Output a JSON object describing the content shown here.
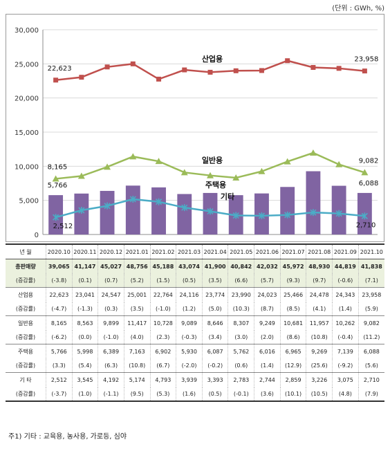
{
  "unit_note": "(단위 : GWh, %)",
  "footnote": "주1) 기타 : 교육용, 농사용, 가로등, 심야",
  "chart_data": {
    "type": "bar+line",
    "categories": [
      "2020.10",
      "2020.11",
      "2020.12",
      "2021.01",
      "2021.02",
      "2021.03",
      "2021.04",
      "2021.05",
      "2021.06",
      "2021.07",
      "2021.08",
      "2021.09",
      "2021.10"
    ],
    "ylim": [
      0,
      30000
    ],
    "yticks": [
      "0",
      "5,000",
      "10,000",
      "15,000",
      "20,000",
      "25,000",
      "30,000"
    ],
    "grid": true,
    "colors": {
      "industrial": "#c0504d",
      "general": "#9bbb59",
      "residential": "#8064a2",
      "other": "#4bacc6"
    },
    "series": [
      {
        "key": "industrial",
        "name": "산업용",
        "type": "line",
        "values": [
          22623,
          23041,
          24547,
          25001,
          22764,
          24116,
          23774,
          23990,
          24023,
          25466,
          24478,
          24343,
          23958
        ],
        "start_label": "22,623",
        "end_label": "23,958"
      },
      {
        "key": "general",
        "name": "일반용",
        "type": "line",
        "values": [
          8165,
          8563,
          9899,
          11417,
          10728,
          9089,
          8646,
          8307,
          9249,
          10681,
          11957,
          10262,
          9082
        ],
        "start_label": "8,165",
        "end_label": "9,082"
      },
      {
        "key": "residential",
        "name": "주택용",
        "type": "bar",
        "values": [
          5766,
          5998,
          6389,
          7163,
          6902,
          5930,
          6087,
          5762,
          6016,
          6965,
          9269,
          7139,
          6088
        ],
        "start_label": "5,766",
        "end_label": "6,088"
      },
      {
        "key": "other",
        "name": "기타",
        "type": "line",
        "values": [
          2512,
          3545,
          4192,
          5174,
          4793,
          3939,
          3393,
          2783,
          2744,
          2859,
          3226,
          3075,
          2710
        ],
        "start_label": "2,512",
        "end_label": "2,710"
      }
    ]
  },
  "table": {
    "header_label": "년  월",
    "periods": [
      "2020.10",
      "2020.11",
      "2020.12",
      "2021.01",
      "2021.02",
      "2021.03",
      "2021.04",
      "2021.05",
      "2021.06",
      "2021.07",
      "2021.08",
      "2021.09",
      "2021.10"
    ],
    "growth_label": "(증감률)",
    "rows": [
      {
        "name": "총판매량",
        "values": [
          "39,065",
          "41,147",
          "45,027",
          "48,756",
          "45,188",
          "43,074",
          "41,900",
          "40,842",
          "42,032",
          "45,972",
          "48,930",
          "44,819",
          "41,838"
        ],
        "growth": [
          "(-3.8)",
          "(0.1)",
          "(0.7)",
          "(5.2)",
          "(1.5)",
          "(0.5)",
          "(3.5)",
          "(6.6)",
          "(5.7)",
          "(9.3)",
          "(9.7)",
          "(-0.6)",
          "(7.1)"
        ]
      },
      {
        "name": "산업용",
        "values": [
          "22,623",
          "23,041",
          "24,547",
          "25,001",
          "22,764",
          "24,116",
          "23,774",
          "23,990",
          "24,023",
          "25,466",
          "24,478",
          "24,343",
          "23,958"
        ],
        "growth": [
          "(-4.7)",
          "(-1.3)",
          "(0.3)",
          "(3.5)",
          "(-1.0)",
          "(1.2)",
          "(5.0)",
          "(10.3)",
          "(8.7)",
          "(8.5)",
          "(4.1)",
          "(1.4)",
          "(5.9)"
        ]
      },
      {
        "name": "일반용",
        "values": [
          "8,165",
          "8,563",
          "9,899",
          "11,417",
          "10,728",
          "9,089",
          "8,646",
          "8,307",
          "9,249",
          "10,681",
          "11,957",
          "10,262",
          "9,082"
        ],
        "growth": [
          "(-6.2)",
          "(0.0)",
          "(-1.0)",
          "(4.0)",
          "(2.3)",
          "(-0.3)",
          "(3.4)",
          "(3.0)",
          "(2.0)",
          "(8.6)",
          "(10.8)",
          "(-0.4)",
          "(11.2)"
        ]
      },
      {
        "name": "주택용",
        "values": [
          "5,766",
          "5,998",
          "6,389",
          "7,163",
          "6,902",
          "5,930",
          "6,087",
          "5,762",
          "6,016",
          "6,965",
          "9,269",
          "7,139",
          "6,088"
        ],
        "growth": [
          "(3.3)",
          "(5.4)",
          "(6.3)",
          "(10.8)",
          "(6.7)",
          "(-2.0)",
          "(-0.2)",
          "(0.6)",
          "(1.4)",
          "(12.9)",
          "(25.6)",
          "(-9.2)",
          "(5.6)"
        ]
      },
      {
        "name": "기  타",
        "values": [
          "2,512",
          "3,545",
          "4,192",
          "5,174",
          "4,793",
          "3,939",
          "3,393",
          "2,783",
          "2,744",
          "2,859",
          "3,226",
          "3,075",
          "2,710"
        ],
        "growth": [
          "(-3.7)",
          "(1.0)",
          "(-1.1)",
          "(9.5)",
          "(5.3)",
          "(1.6)",
          "(0.5)",
          "(-0.1)",
          "(3.6)",
          "(10.1)",
          "(10.5)",
          "(4.8)",
          "(7.9)"
        ]
      }
    ]
  }
}
